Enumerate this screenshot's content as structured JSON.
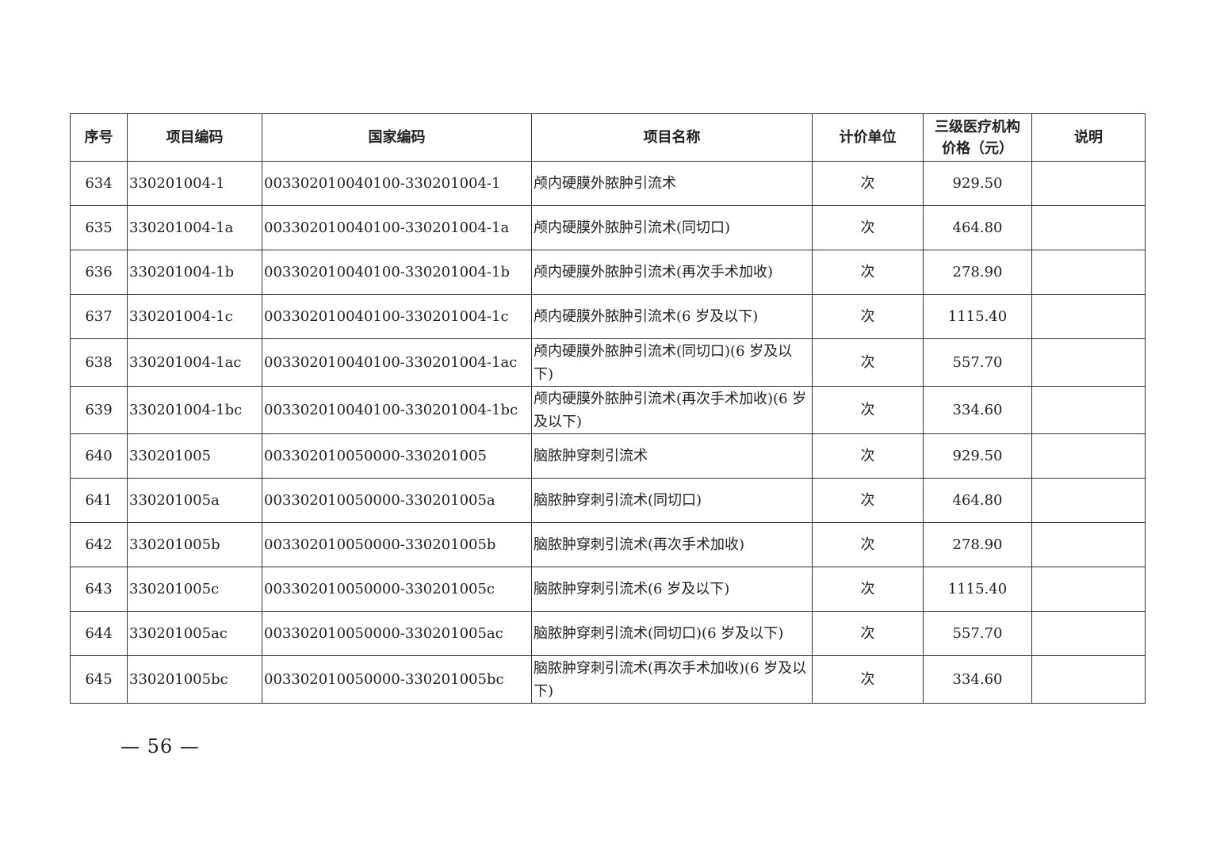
{
  "table": {
    "headers": [
      "序号",
      "项目编码",
      "国家编码",
      "项目名称",
      "计价单位",
      "三级医疗机构价格（元）",
      "说明"
    ],
    "rows": [
      {
        "no": "634",
        "code": "330201004-1",
        "national": "003302010040100-330201004-1",
        "name": "颅内硬膜外脓肿引流术",
        "unit": "次",
        "price": "929.50",
        "note": ""
      },
      {
        "no": "635",
        "code": "330201004-1a",
        "national": "003302010040100-330201004-1a",
        "name": "颅内硬膜外脓肿引流术(同切口)",
        "unit": "次",
        "price": "464.80",
        "note": ""
      },
      {
        "no": "636",
        "code": "330201004-1b",
        "national": "003302010040100-330201004-1b",
        "name": "颅内硬膜外脓肿引流术(再次手术加收)",
        "unit": "次",
        "price": "278.90",
        "note": ""
      },
      {
        "no": "637",
        "code": "330201004-1c",
        "national": "003302010040100-330201004-1c",
        "name": "颅内硬膜外脓肿引流术(6 岁及以下)",
        "unit": "次",
        "price": "1115.40",
        "note": ""
      },
      {
        "no": "638",
        "code": "330201004-1ac",
        "national": "003302010040100-330201004-1ac",
        "name": "颅内硬膜外脓肿引流术(同切口)(6 岁及以下)",
        "unit": "次",
        "price": "557.70",
        "note": ""
      },
      {
        "no": "639",
        "code": "330201004-1bc",
        "national": "003302010040100-330201004-1bc",
        "name": "颅内硬膜外脓肿引流术(再次手术加收)(6 岁及以下)",
        "unit": "次",
        "price": "334.60",
        "note": ""
      },
      {
        "no": "640",
        "code": "330201005",
        "national": "003302010050000-330201005",
        "name": "脑脓肿穿刺引流术",
        "unit": "次",
        "price": "929.50",
        "note": ""
      },
      {
        "no": "641",
        "code": "330201005a",
        "national": "003302010050000-330201005a",
        "name": "脑脓肿穿刺引流术(同切口)",
        "unit": "次",
        "price": "464.80",
        "note": ""
      },
      {
        "no": "642",
        "code": "330201005b",
        "national": "003302010050000-330201005b",
        "name": "脑脓肿穿刺引流术(再次手术加收)",
        "unit": "次",
        "price": "278.90",
        "note": ""
      },
      {
        "no": "643",
        "code": "330201005c",
        "national": "003302010050000-330201005c",
        "name": "脑脓肿穿刺引流术(6 岁及以下)",
        "unit": "次",
        "price": "1115.40",
        "note": ""
      },
      {
        "no": "644",
        "code": "330201005ac",
        "national": "003302010050000-330201005ac",
        "name": "脑脓肿穿刺引流术(同切口)(6 岁及以下)",
        "unit": "次",
        "price": "557.70",
        "note": ""
      },
      {
        "no": "645",
        "code": "330201005bc",
        "national": "003302010050000-330201005bc",
        "name": "脑脓肿穿刺引流术(再次手术加收)(6 岁及以下)",
        "unit": "次",
        "price": "334.60",
        "note": ""
      }
    ]
  },
  "page_number": "— 56 —"
}
